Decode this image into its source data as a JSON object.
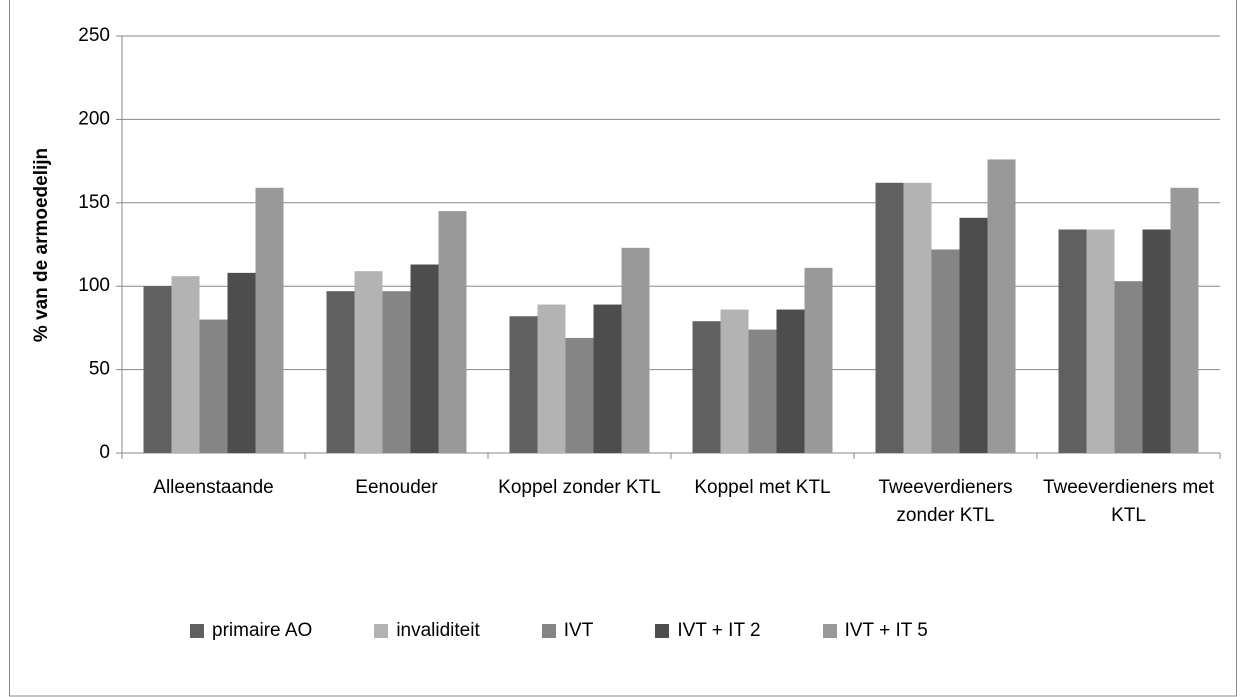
{
  "chart_data": {
    "type": "bar",
    "y_label": "% van de armoedelijn",
    "categories": [
      "Alleenstaande",
      "Eenouder",
      "Koppel zonder KTL",
      "Koppel met KTL",
      "Tweeverdieners zonder KTL",
      "Tweeverdieners met KTL"
    ],
    "series": [
      {
        "name": "primaire AO",
        "color": "#606060",
        "values": [
          100,
          97,
          82,
          79,
          162,
          134
        ]
      },
      {
        "name": "invaliditeit",
        "color": "#b3b3b3",
        "values": [
          106,
          109,
          89,
          86,
          162,
          134
        ]
      },
      {
        "name": "IVT",
        "color": "#858585",
        "values": [
          80,
          97,
          69,
          74,
          122,
          103
        ]
      },
      {
        "name": "IVT + IT 2",
        "color": "#4d4d4d",
        "values": [
          108,
          113,
          89,
          86,
          141,
          134
        ]
      },
      {
        "name": "IVT + IT 5",
        "color": "#999999",
        "values": [
          159,
          145,
          123,
          111,
          176,
          159
        ]
      }
    ],
    "ylim": [
      0,
      250
    ],
    "yticks": [
      0,
      50,
      100,
      150,
      200,
      250
    ],
    "grid": true,
    "legend": "bottom"
  }
}
